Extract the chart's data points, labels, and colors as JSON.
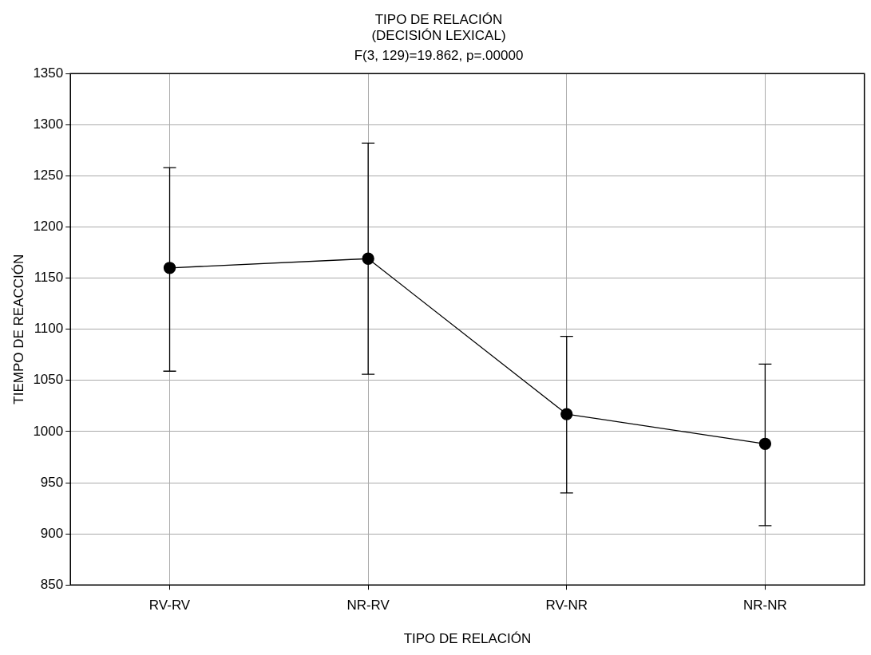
{
  "chart_data": {
    "type": "line",
    "title": "TIPO DE RELACIÓN",
    "subtitle": "(DECISIÓN LEXICAL)",
    "annotations": [
      "F(3, 129)=19.862, p=.00000"
    ],
    "xlabel": "TIPO DE RELACIÓN",
    "ylabel": "TIEMPO DE REACCIÓN",
    "categories": [
      "RV-RV",
      "NR-RV",
      "RV-NR",
      "NR-NR"
    ],
    "series": [
      {
        "color": "#000000",
        "values": [
          1160,
          1169,
          1017,
          988
        ],
        "errors": [
          [
            1059,
            1258
          ],
          [
            1056,
            1282
          ],
          [
            940,
            1093
          ],
          [
            908,
            1066
          ]
        ]
      }
    ],
    "ylim": [
      850,
      1350
    ],
    "yticks": [
      850,
      900,
      950,
      1000,
      1050,
      1100,
      1150,
      1200,
      1250,
      1300,
      1350
    ],
    "grid": true,
    "legend": false,
    "marker": "circle",
    "line_style": "solid"
  }
}
